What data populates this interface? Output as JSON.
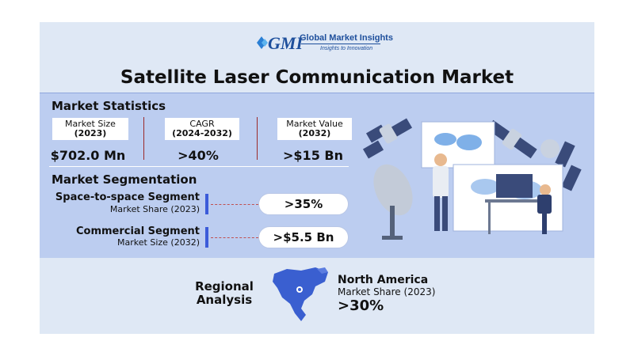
{
  "brand": {
    "name": "Global Market Insights",
    "logo_text": "GMI",
    "tagline": "Insights to Innovation"
  },
  "title": "Satellite Laser Communication Market",
  "stats": {
    "heading": "Market Statistics",
    "items": [
      {
        "label": "Market Size",
        "period": "(2023)",
        "value": "$702.0 Mn"
      },
      {
        "label": "CAGR",
        "period": "(2024-2032)",
        "value": ">40%"
      },
      {
        "label": "Market Value",
        "period": "(2032)",
        "value": ">$15 Bn"
      }
    ]
  },
  "segmentation": {
    "heading": "Market Segmentation",
    "items": [
      {
        "name": "Space-to-space Segment",
        "sub": "Market Share (2023)",
        "value": ">35%"
      },
      {
        "name": "Commercial Segment",
        "sub": "Market Size (2032)",
        "value": ">$5.5 Bn"
      }
    ]
  },
  "regional": {
    "heading_line1": "Regional",
    "heading_line2": "Analysis",
    "region": "North America",
    "sub": "Market Share (2023)",
    "value": ">30%"
  },
  "colors": {
    "card": "#dfe8f5",
    "band": "#bccdf0",
    "accent": "#3b5bd9",
    "brand": "#1e4f9c"
  },
  "icons": [
    "gmi-logo-icon",
    "satellite-icon",
    "satellite-dish-icon",
    "scientist-illustration",
    "monitor-icon",
    "north-america-map-icon",
    "location-pin-icon"
  ]
}
